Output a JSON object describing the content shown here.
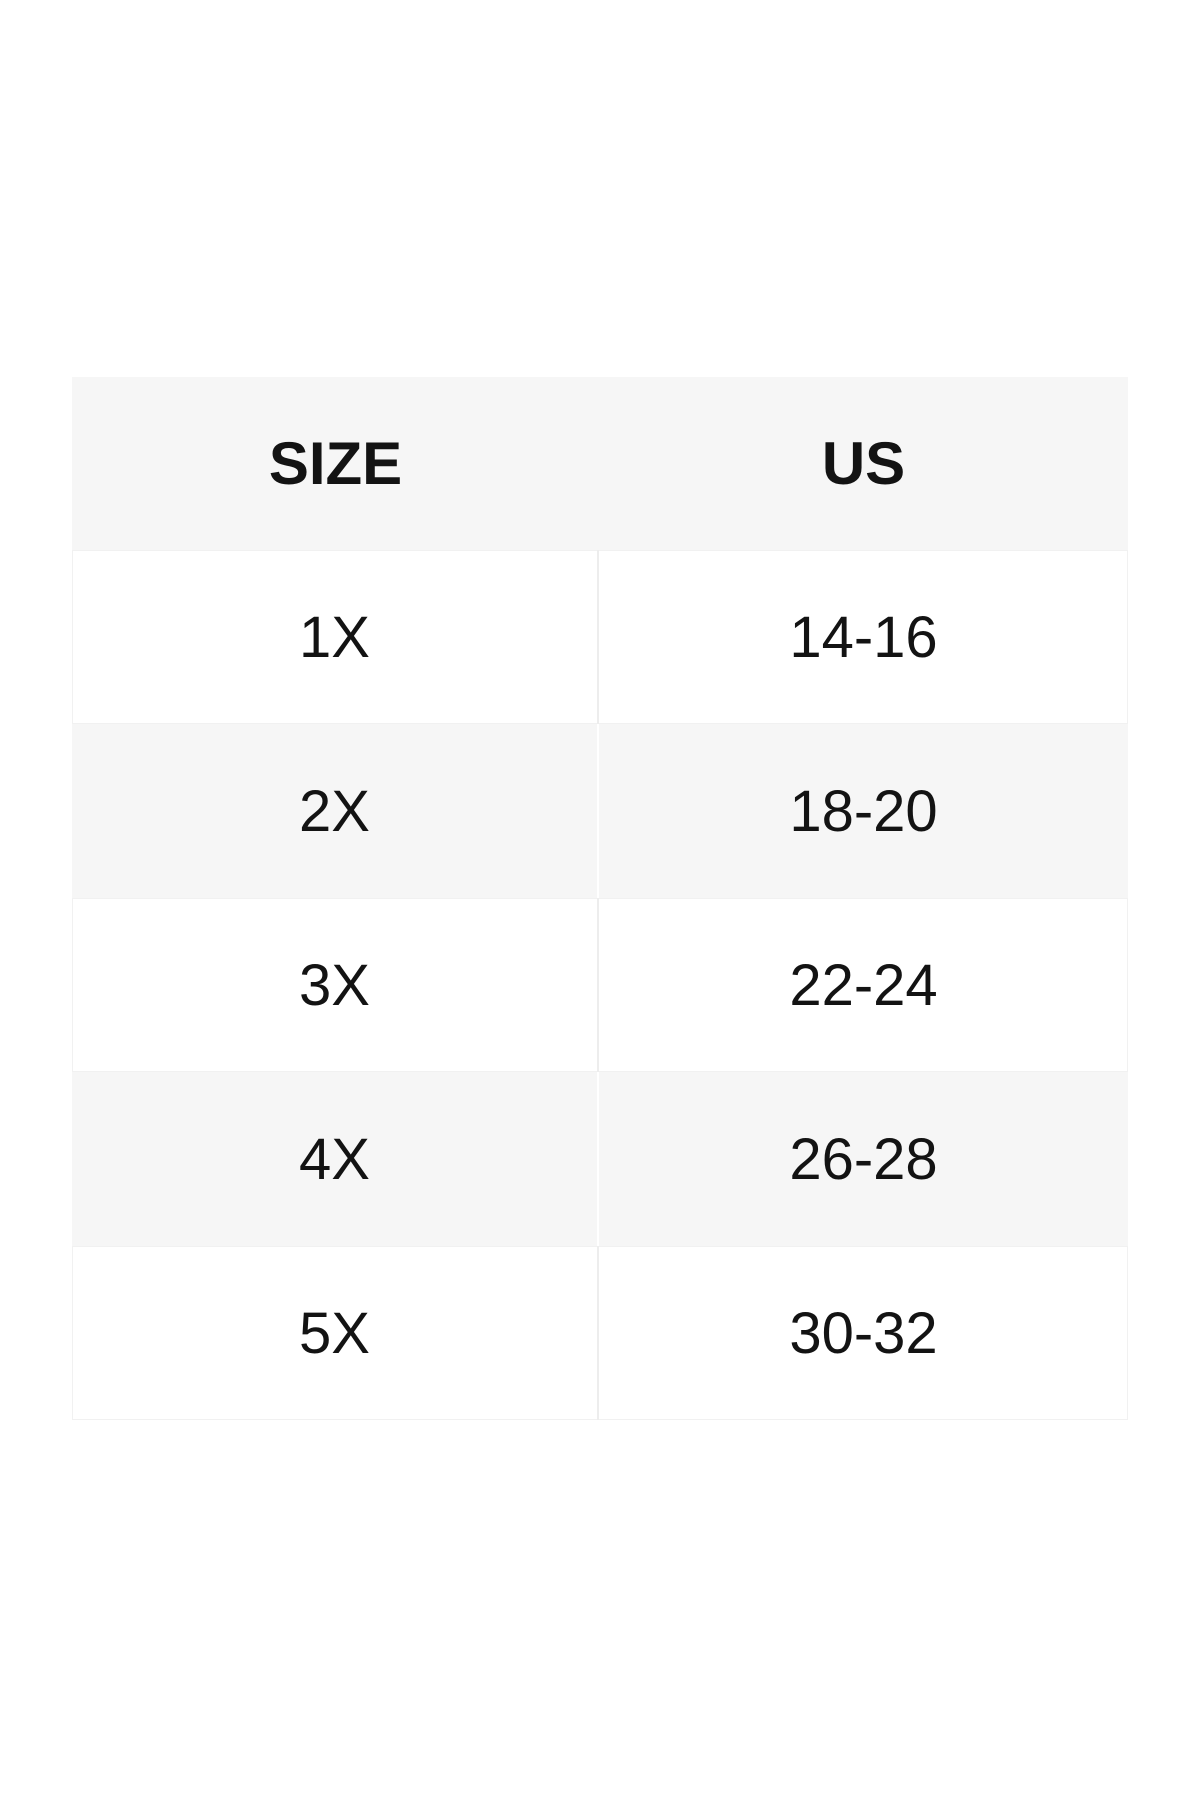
{
  "size_chart": {
    "columns": [
      "SIZE",
      "US"
    ],
    "rows": [
      {
        "size": "1X",
        "us": "14-16"
      },
      {
        "size": "2X",
        "us": "18-20"
      },
      {
        "size": "3X",
        "us": "22-24"
      },
      {
        "size": "4X",
        "us": "26-28"
      },
      {
        "size": "5X",
        "us": "30-32"
      }
    ]
  },
  "colors": {
    "header_bg": "#f6f6f6",
    "alt_row_bg": "#f6f6f6",
    "row_bg": "#ffffff",
    "divider_on_white": "#ededed",
    "divider_on_gray": "#ffffff",
    "hairline": "#f1f1f1",
    "text": "#131313"
  }
}
